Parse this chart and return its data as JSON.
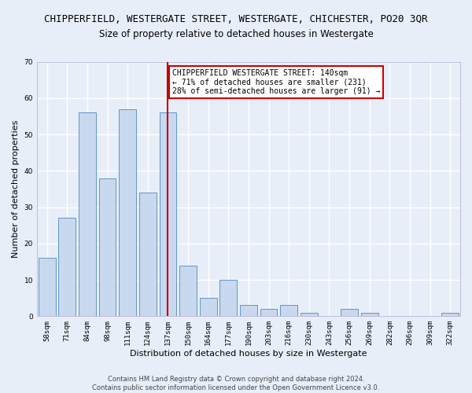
{
  "title": "CHIPPERFIELD, WESTERGATE STREET, WESTERGATE, CHICHESTER, PO20 3QR",
  "subtitle": "Size of property relative to detached houses in Westergate",
  "xlabel": "Distribution of detached houses by size in Westergate",
  "ylabel": "Number of detached properties",
  "categories": [
    "58sqm",
    "71sqm",
    "84sqm",
    "98sqm",
    "111sqm",
    "124sqm",
    "137sqm",
    "150sqm",
    "164sqm",
    "177sqm",
    "190sqm",
    "203sqm",
    "216sqm",
    "230sqm",
    "243sqm",
    "256sqm",
    "269sqm",
    "282sqm",
    "296sqm",
    "309sqm",
    "322sqm"
  ],
  "values": [
    16,
    27,
    56,
    38,
    57,
    34,
    56,
    14,
    5,
    10,
    3,
    2,
    3,
    1,
    0,
    2,
    1,
    0,
    0,
    0,
    1
  ],
  "bar_color": "#c8d8ee",
  "bar_edge_color": "#6096c8",
  "highlight_color_red": "#bb0000",
  "ylim": [
    0,
    70
  ],
  "yticks": [
    0,
    10,
    20,
    30,
    40,
    50,
    60,
    70
  ],
  "vline_x": 6,
  "annotation_text": "CHIPPERFIELD WESTERGATE STREET: 140sqm\n← 71% of detached houses are smaller (231)\n28% of semi-detached houses are larger (91) →",
  "annotation_box_color": "#ffffff",
  "annotation_box_edge": "#cc0000",
  "footer_line1": "Contains HM Land Registry data © Crown copyright and database right 2024.",
  "footer_line2": "Contains public sector information licensed under the Open Government Licence v3.0.",
  "background_color": "#e8eef8",
  "grid_color": "#ffffff",
  "title_fontsize": 9,
  "subtitle_fontsize": 8.5,
  "axis_label_fontsize": 8,
  "tick_fontsize": 6.5,
  "annotation_fontsize": 7,
  "footer_fontsize": 6
}
